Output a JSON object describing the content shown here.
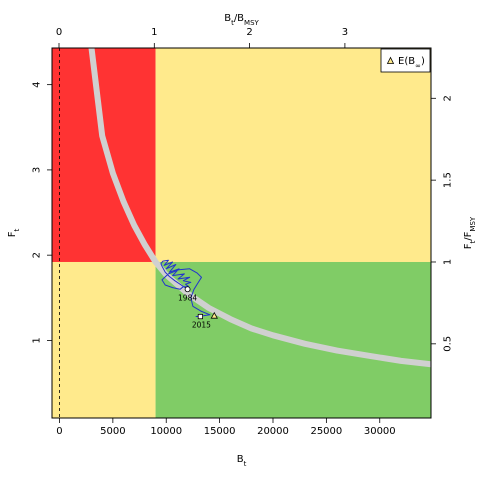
{
  "chart_data": {
    "type": "kobe",
    "colors": {
      "red": "#ff3333",
      "yellow": "#ffea8c",
      "green": "#80cc66",
      "equilibrium_band": "#d0d0d0",
      "trajectory": "#2233cc"
    },
    "axes": {
      "bottom": {
        "label": "B",
        "label_sub": "t",
        "range": [
          -700,
          34800
        ],
        "ticks": [
          0,
          5000,
          10000,
          15000,
          20000,
          25000,
          30000
        ],
        "tick_labels": [
          "0",
          "5000",
          "10000",
          "15000",
          "20000",
          "25000",
          "30000"
        ]
      },
      "left": {
        "label": "F",
        "label_sub": "t",
        "range": [
          0.09,
          4.43
        ],
        "ticks": [
          1,
          2,
          3,
          4
        ],
        "tick_labels": [
          "1",
          "2",
          "3",
          "4"
        ]
      },
      "top": {
        "label": "B",
        "label_sub": "t",
        "label_mid": "/B",
        "label_sub2": "MSY",
        "ticks": [
          0,
          1,
          2,
          3
        ],
        "tick_labels": [
          "0",
          "1",
          "2",
          "3"
        ]
      },
      "right": {
        "label": "F",
        "label_sub": "t",
        "label_mid": "/F",
        "label_sub2": "MSY",
        "ticks": [
          0.5,
          1,
          1.5,
          2
        ],
        "tick_labels": [
          "0.5",
          "1",
          "1.5",
          "2"
        ]
      }
    },
    "reference_points": {
      "bmsy": 9000,
      "fmsy": 1.92
    },
    "equilibrium_curve": {
      "b": [
        3000,
        4000,
        5000,
        6000,
        7000,
        8000,
        9000,
        10000,
        12000,
        14000,
        16000,
        18000,
        20000,
        23000,
        26000,
        29000,
        32000,
        34800
      ],
      "f": [
        4.43,
        3.4,
        2.96,
        2.63,
        2.35,
        2.12,
        1.92,
        1.77,
        1.55,
        1.38,
        1.25,
        1.14,
        1.06,
        0.96,
        0.88,
        0.82,
        0.76,
        0.72
      ]
    },
    "trajectory": {
      "b": [
        12000,
        11400,
        10800,
        10300,
        9900,
        9600,
        9500,
        9700,
        10200,
        9800,
        10600,
        10000,
        10900,
        10300,
        11200,
        10600,
        11700,
        11100,
        12200,
        11600,
        12300,
        11800,
        12100,
        11600,
        11300,
        10600,
        9900,
        9600,
        10200,
        11200,
        12200,
        12900,
        13300,
        13000,
        12600,
        12300,
        12500,
        13300,
        14100,
        13500,
        12800,
        13200
      ],
      "f": [
        1.6,
        1.65,
        1.7,
        1.75,
        1.8,
        1.87,
        1.9,
        1.93,
        1.94,
        1.88,
        1.92,
        1.84,
        1.89,
        1.8,
        1.84,
        1.76,
        1.78,
        1.72,
        1.74,
        1.7,
        1.68,
        1.66,
        1.63,
        1.63,
        1.6,
        1.62,
        1.65,
        1.71,
        1.78,
        1.83,
        1.84,
        1.79,
        1.74,
        1.68,
        1.6,
        1.5,
        1.4,
        1.34,
        1.3,
        1.29,
        1.28,
        1.28
      ]
    },
    "year_labels": [
      {
        "text": "1984",
        "b": 12000,
        "f": 1.6
      },
      {
        "text": "2015",
        "b": 13200,
        "f": 1.28
      }
    ],
    "equilibrium_point": {
      "b": 14500,
      "f": 1.29
    },
    "legend": {
      "placement": "top-right",
      "label": "E(B",
      "label_sub": "∞",
      "label_end": ")"
    }
  }
}
